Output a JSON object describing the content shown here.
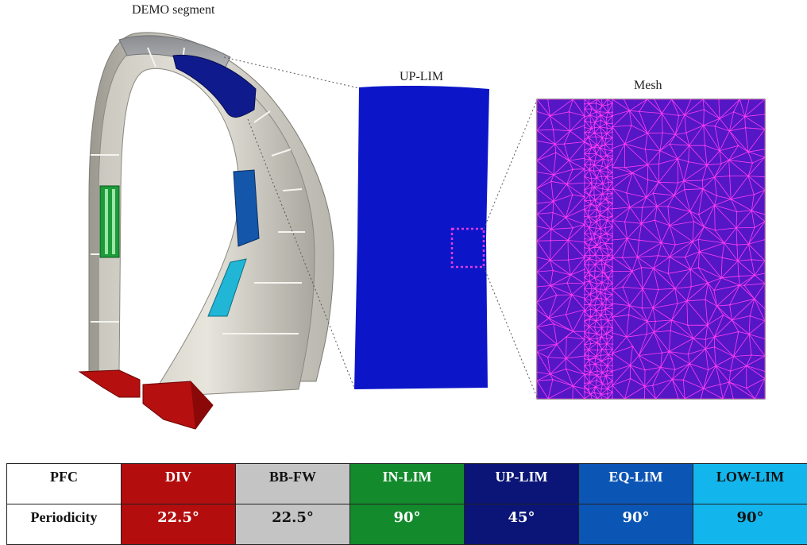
{
  "labels": {
    "demo_segment": "DEMO segment",
    "up_lim": "UP-LIM",
    "mesh": "Mesh"
  },
  "colors": {
    "div": "#b30d0d",
    "bb_fw": "#c8c8c8",
    "in_lim": "#1a8a2a",
    "up_lim": "#0b1a8a",
    "eq_lim": "#1455b0",
    "low_lim": "#1ab4e8",
    "mesh_bg": "#5a18c8",
    "mesh_line": "#ff2cf0",
    "up_lim_panel": "#0c16c8"
  },
  "table": {
    "header_label": "PFC",
    "row_label": "Periodicity",
    "columns": [
      {
        "name": "DIV",
        "periodicity": "22.5°",
        "bg": "#b30d0d",
        "fg": "#ffffff"
      },
      {
        "name": "BB-FW",
        "periodicity": "22.5°",
        "bg": "#c4c4c4",
        "fg": "#111111"
      },
      {
        "name": "IN-LIM",
        "periodicity": "90°",
        "bg": "#138a2c",
        "fg": "#ffffff"
      },
      {
        "name": "UP-LIM",
        "periodicity": "45°",
        "bg": "#0a1577",
        "fg": "#ffffff"
      },
      {
        "name": "EQ-LIM",
        "periodicity": "90°",
        "bg": "#0b55b4",
        "fg": "#ffffff"
      },
      {
        "name": "LOW-LIM",
        "periodicity": "90°",
        "bg": "#13b6ec",
        "fg": "#111111"
      }
    ]
  }
}
